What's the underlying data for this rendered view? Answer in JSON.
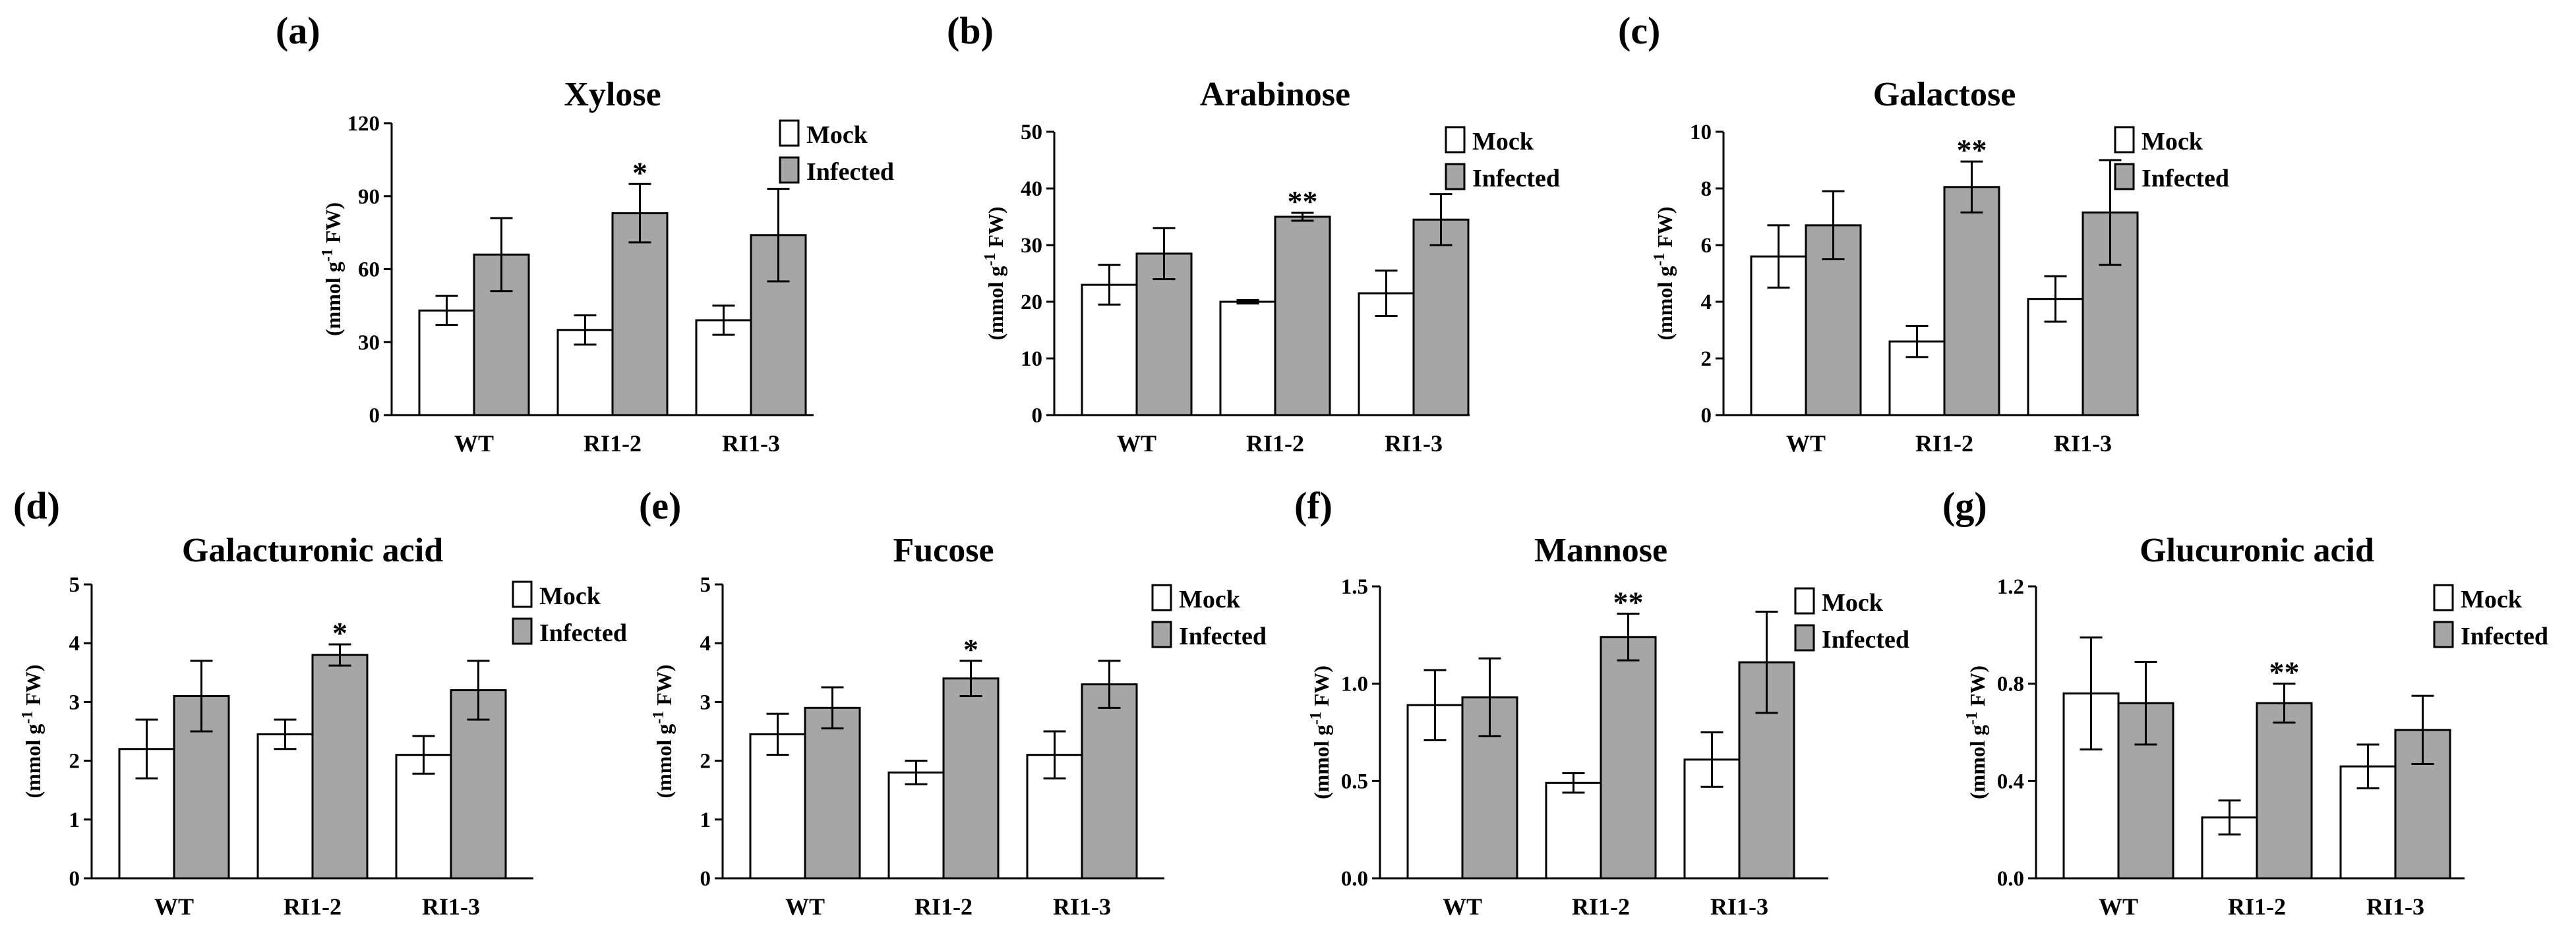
{
  "figure_label": "Seven bar charts of cell wall monosaccharide content",
  "colors": {
    "mock": "#ffffff",
    "infected": "#a6a6a6",
    "stroke": "#000000"
  },
  "legend": {
    "mock": "Mock",
    "infected": "Infected"
  },
  "ylabel": {
    "prefix": "(mmol g",
    "sup": "-1",
    "suffix": " FW)"
  },
  "chart_data": [
    {
      "panel": "(a)",
      "type": "bar",
      "title": "Xylose",
      "categories": [
        "WT",
        "RI1-2",
        "RI1-3"
      ],
      "series": [
        {
          "name": "Mock",
          "values": [
            43,
            35,
            39
          ],
          "errors": [
            6,
            6,
            6
          ]
        },
        {
          "name": "Infected",
          "values": [
            66,
            83,
            74
          ],
          "errors": [
            15,
            12,
            19
          ]
        }
      ],
      "significance": [
        "",
        "*",
        ""
      ],
      "ylim": [
        0,
        120
      ],
      "yticks": [
        0,
        30,
        60,
        90,
        120
      ],
      "ytick_labels": [
        "0",
        "30",
        "60",
        "90",
        "120"
      ],
      "ylabel": "(mmol g-1 FW)"
    },
    {
      "panel": "(b)",
      "type": "bar",
      "title": "Arabinose",
      "categories": [
        "WT",
        "RI1-2",
        "RI1-3"
      ],
      "series": [
        {
          "name": "Mock",
          "values": [
            23,
            20,
            21.5
          ],
          "errors": [
            3.5,
            0.3,
            4
          ]
        },
        {
          "name": "Infected",
          "values": [
            28.5,
            35,
            34.5
          ],
          "errors": [
            4.5,
            0.7,
            4.5
          ]
        }
      ],
      "significance": [
        "",
        "**",
        ""
      ],
      "ylim": [
        0,
        50
      ],
      "yticks": [
        0,
        10,
        20,
        30,
        40,
        50
      ],
      "ytick_labels": [
        "0",
        "10",
        "20",
        "30",
        "40",
        "50"
      ],
      "ylabel": "(mmol g-1 FW)"
    },
    {
      "panel": "(c)",
      "type": "bar",
      "title": "Galactose",
      "categories": [
        "WT",
        "RI1-2",
        "RI1-3"
      ],
      "series": [
        {
          "name": "Mock",
          "values": [
            5.6,
            2.6,
            4.1
          ],
          "errors": [
            1.1,
            0.55,
            0.8
          ]
        },
        {
          "name": "Infected",
          "values": [
            6.7,
            8.05,
            7.15
          ],
          "errors": [
            1.2,
            0.9,
            1.85
          ]
        }
      ],
      "significance": [
        "",
        "**",
        ""
      ],
      "ylim": [
        0,
        10
      ],
      "yticks": [
        0,
        2,
        4,
        6,
        8,
        10
      ],
      "ytick_labels": [
        "0",
        "2",
        "4",
        "6",
        "8",
        "10"
      ],
      "ylabel": "(mmol g-1 FW)"
    },
    {
      "panel": "(d)",
      "type": "bar",
      "title": "Galacturonic acid",
      "categories": [
        "WT",
        "RI1-2",
        "RI1-3"
      ],
      "series": [
        {
          "name": "Mock",
          "values": [
            2.2,
            2.45,
            2.1
          ],
          "errors": [
            0.5,
            0.25,
            0.32
          ]
        },
        {
          "name": "Infected",
          "values": [
            3.1,
            3.8,
            3.2
          ],
          "errors": [
            0.6,
            0.18,
            0.5
          ]
        }
      ],
      "significance": [
        "",
        "*",
        ""
      ],
      "ylim": [
        0,
        5
      ],
      "yticks": [
        0,
        1,
        2,
        3,
        4,
        5
      ],
      "ytick_labels": [
        "0",
        "1",
        "2",
        "3",
        "4",
        "5"
      ],
      "ylabel": "(mmol g-1 FW)"
    },
    {
      "panel": "(e)",
      "type": "bar",
      "title": "Fucose",
      "categories": [
        "WT",
        "RI1-2",
        "RI1-3"
      ],
      "series": [
        {
          "name": "Mock",
          "values": [
            2.45,
            1.8,
            2.1
          ],
          "errors": [
            0.35,
            0.2,
            0.4
          ]
        },
        {
          "name": "Infected",
          "values": [
            2.9,
            3.4,
            3.3
          ],
          "errors": [
            0.35,
            0.3,
            0.4
          ]
        }
      ],
      "significance": [
        "",
        "*",
        ""
      ],
      "ylim": [
        0,
        5
      ],
      "yticks": [
        0,
        1,
        2,
        3,
        4,
        5
      ],
      "ytick_labels": [
        "0",
        "1",
        "2",
        "3",
        "4",
        "5"
      ],
      "ylabel": "(mmol g-1 FW)"
    },
    {
      "panel": "(f)",
      "type": "bar",
      "title": "Mannose",
      "categories": [
        "WT",
        "RI1-2",
        "RI1-3"
      ],
      "series": [
        {
          "name": "Mock",
          "values": [
            0.89,
            0.49,
            0.61
          ],
          "errors": [
            0.18,
            0.05,
            0.14
          ]
        },
        {
          "name": "Infected",
          "values": [
            0.93,
            1.24,
            1.11
          ],
          "errors": [
            0.2,
            0.12,
            0.26
          ]
        }
      ],
      "significance": [
        "",
        "**",
        ""
      ],
      "ylim": [
        0,
        1.5
      ],
      "yticks": [
        0,
        0.5,
        1.0,
        1.5
      ],
      "ytick_labels": [
        "0.0",
        "0.5",
        "1.0",
        "1.5"
      ],
      "ylabel": "(mmol g-1 FW)"
    },
    {
      "panel": "(g)",
      "type": "bar",
      "title": "Glucuronic acid",
      "categories": [
        "WT",
        "RI1-2",
        "RI1-3"
      ],
      "series": [
        {
          "name": "Mock",
          "values": [
            0.76,
            0.25,
            0.46
          ],
          "errors": [
            0.23,
            0.07,
            0.09
          ]
        },
        {
          "name": "Infected",
          "values": [
            0.72,
            0.72,
            0.61
          ],
          "errors": [
            0.17,
            0.08,
            0.14
          ]
        }
      ],
      "significance": [
        "",
        "**",
        ""
      ],
      "ylim": [
        0,
        1.2
      ],
      "yticks": [
        0,
        0.4,
        0.8,
        1.2
      ],
      "ytick_labels": [
        "0.0",
        "0.4",
        "0.8",
        "1.2"
      ],
      "ylabel": "(mmol g-1 FW)"
    }
  ]
}
